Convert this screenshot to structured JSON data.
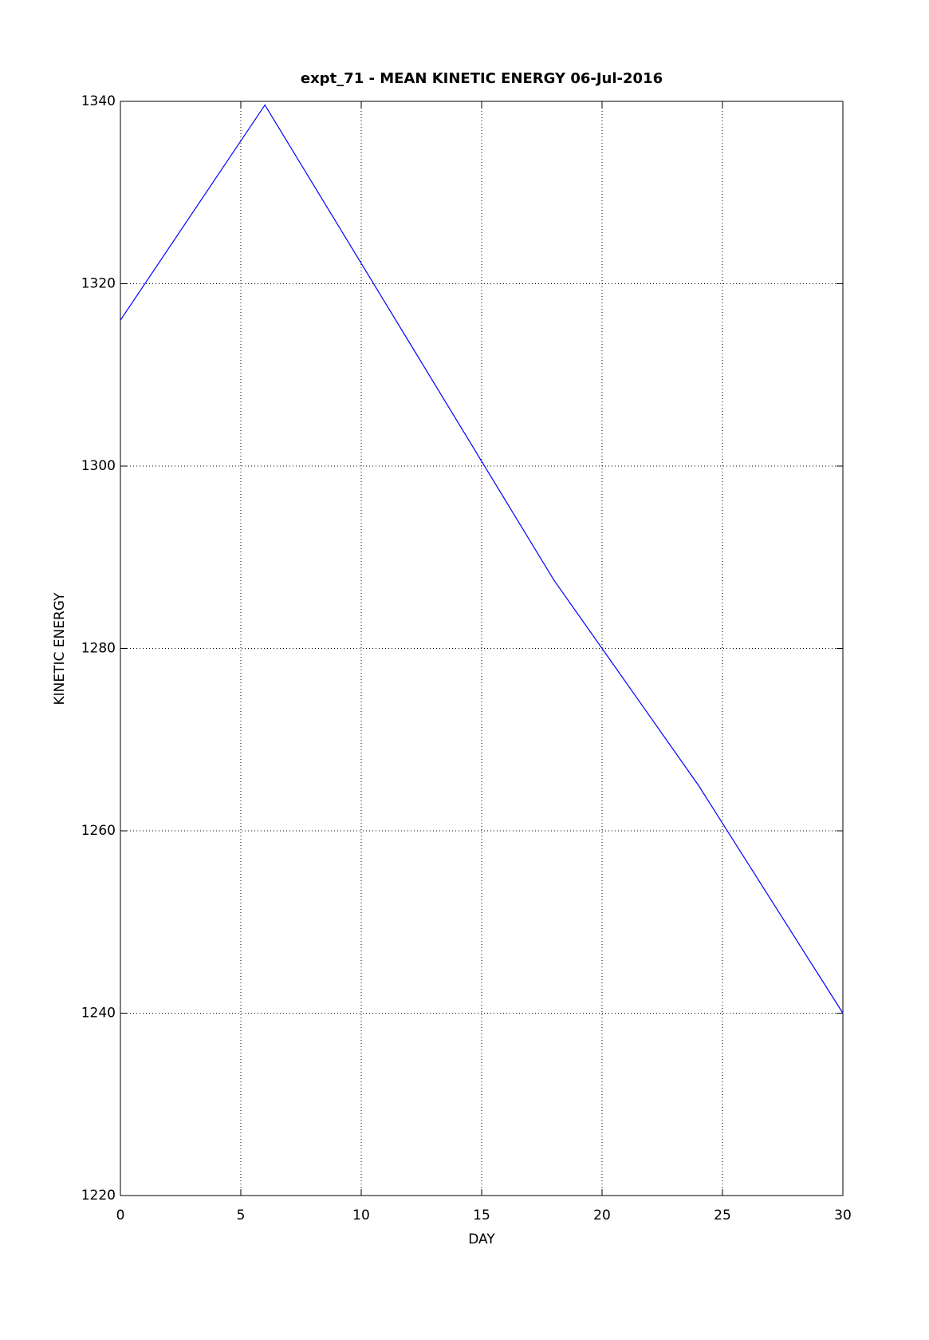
{
  "chart_data": {
    "type": "line",
    "title": "expt_71 - MEAN KINETIC ENERGY 06-Jul-2016",
    "x_label": "DAY",
    "y_label": "KINETIC ENERGY",
    "x": [
      0,
      6,
      18,
      24,
      30
    ],
    "series": [
      {
        "color": "#0000ff",
        "values": [
          1316,
          1339.6,
          1287.5,
          1265,
          1240
        ]
      }
    ],
    "xlim": [
      0,
      30
    ],
    "xticks": [
      0,
      5,
      10,
      15,
      20,
      25,
      30
    ],
    "ylim": [
      1220,
      1340
    ],
    "yticks": [
      1220,
      1240,
      1260,
      1280,
      1300,
      1320,
      1340
    ],
    "grid": true
  }
}
